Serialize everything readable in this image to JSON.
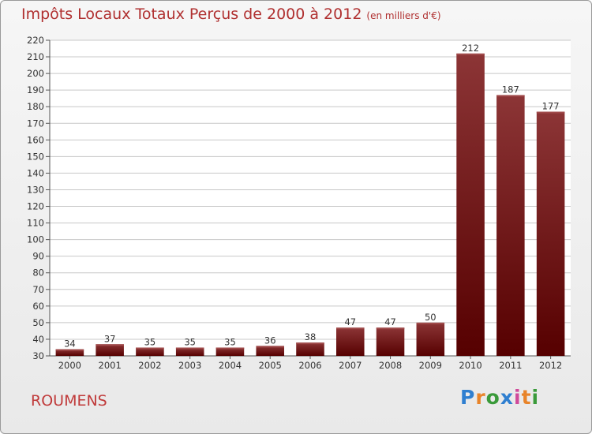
{
  "header": {
    "title": "Impôts Locaux Totaux Perçus de 2000 à 2012",
    "unit": "(en milliers d'€)"
  },
  "footer": {
    "place": "ROUMENS",
    "logo": "Proxiti"
  },
  "colors": {
    "bar_top": "#8c3536",
    "bar_bottom": "#560000",
    "title": "#b03030",
    "grid": "#c8c8c8"
  },
  "chart_data": {
    "type": "bar",
    "title": "Impôts Locaux Totaux Perçus de 2000 à 2012",
    "xlabel": "",
    "ylabel": "en milliers d'€",
    "categories": [
      "2000",
      "2001",
      "2002",
      "2003",
      "2004",
      "2005",
      "2006",
      "2007",
      "2008",
      "2009",
      "2010",
      "2011",
      "2012"
    ],
    "values": [
      34,
      37,
      35,
      35,
      35,
      36,
      38,
      47,
      47,
      50,
      212,
      187,
      177
    ],
    "ylim": [
      30,
      220
    ],
    "yticks": [
      30,
      40,
      50,
      60,
      70,
      80,
      90,
      100,
      110,
      120,
      130,
      140,
      150,
      160,
      170,
      180,
      190,
      200,
      210,
      220
    ],
    "grid": true
  }
}
